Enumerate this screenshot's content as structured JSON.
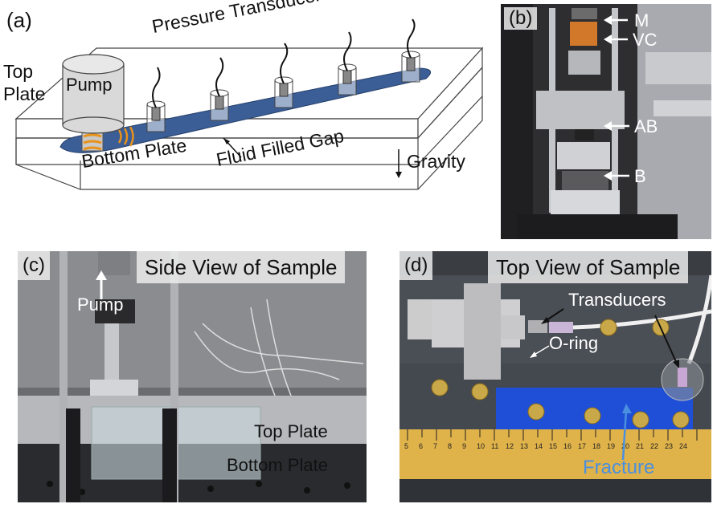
{
  "panel_a": {
    "label": "(a)",
    "top_plate": "Top\nPlate",
    "pump": "Pump",
    "pressure_transducers": "Pressure Transducers",
    "bottom_plate": "Bottom Plate",
    "fluid_filled_gap": "Fluid Filled Gap",
    "gravity": "Gravity",
    "colors": {
      "gap": "#3b5e96",
      "pump_coil": "#e8921a"
    }
  },
  "panel_b": {
    "label": "(b)",
    "markers": [
      "M",
      "VC",
      "AB",
      "B"
    ]
  },
  "panel_c": {
    "label": "(c)",
    "title": "Side View of Sample",
    "pump": "Pump",
    "top_plate": "Top Plate",
    "bottom_plate": "Bottom Plate"
  },
  "panel_d": {
    "label": "(d)",
    "title": "Top View of Sample",
    "transducers": "Transducers",
    "o_ring": "O-ring",
    "fracture": "Fracture",
    "ruler_numbers": [
      "5",
      "6",
      "7",
      "8",
      "9",
      "10",
      "11",
      "12",
      "13",
      "14",
      "15",
      "16",
      "17",
      "18",
      "19",
      "20",
      "21",
      "22",
      "23",
      "24"
    ],
    "colors": {
      "fracture": "#1e4fd6",
      "fracture_label": "#4a8fe0"
    }
  }
}
